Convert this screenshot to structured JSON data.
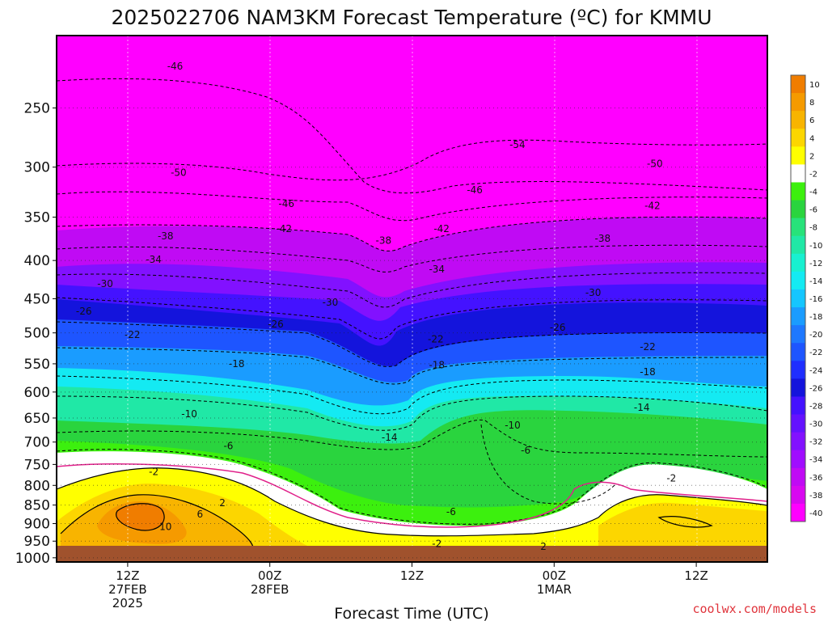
{
  "chart_data": {
    "type": "heatmap",
    "title": "2025022706 NAM3KM Forecast Temperature (ºC) for KMMU",
    "xlabel": "Forecast Time (UTC)",
    "ylabel": "",
    "x_ticks": [
      {
        "hours": 6,
        "lines": [
          "12Z",
          "27FEB",
          "2025"
        ]
      },
      {
        "hours": 18,
        "lines": [
          "00Z",
          "28FEB"
        ]
      },
      {
        "hours": 30,
        "lines": [
          "12Z"
        ]
      },
      {
        "hours": 42,
        "lines": [
          "00Z",
          "1MAR"
        ]
      },
      {
        "hours": 54,
        "lines": [
          "12Z"
        ]
      }
    ],
    "xlim_hours": [
      0,
      60
    ],
    "y_ticks": [
      250,
      300,
      350,
      400,
      450,
      500,
      550,
      600,
      650,
      700,
      750,
      800,
      850,
      900,
      950,
      1000
    ],
    "ylim_hpa": [
      1013,
      200
    ],
    "y_scale": "log-pressure",
    "ground_level_hpa": 1000,
    "colorbar": {
      "levels": [
        10,
        8,
        6,
        4,
        2,
        -2,
        -4,
        -6,
        -8,
        -10,
        -12,
        -14,
        -16,
        -18,
        -20,
        -22,
        -24,
        -26,
        -28,
        -30,
        -32,
        -34,
        -36,
        -38,
        -40
      ],
      "colors": [
        "#f07d00",
        "#f59a00",
        "#f8b400",
        "#fcd600",
        "#ffff00",
        "#ffffff",
        "#3cf00e",
        "#2ad43e",
        "#27e27a",
        "#20e8a6",
        "#18f0d0",
        "#14eaf2",
        "#15c6ff",
        "#1a9cff",
        "#1e78ff",
        "#1e55ff",
        "#1f2eff",
        "#1414dc",
        "#4412ff",
        "#6412ff",
        "#8211ff",
        "#a00dff",
        "#c00af4",
        "#d808f0",
        "#ff00ff"
      ]
    },
    "contour_labels": [
      {
        "text": "-46",
        "hours": 10,
        "hpa": 220
      },
      {
        "text": "-50",
        "hours": 10.3,
        "hpa": 305
      },
      {
        "text": "-46",
        "hours": 19.4,
        "hpa": 336
      },
      {
        "text": "-42",
        "hours": 19.2,
        "hpa": 363
      },
      {
        "text": "-38",
        "hours": 9.2,
        "hpa": 371
      },
      {
        "text": "-34",
        "hours": 8.2,
        "hpa": 399
      },
      {
        "text": "-30",
        "hours": 4.1,
        "hpa": 430
      },
      {
        "text": "-26",
        "hours": 2.3,
        "hpa": 468
      },
      {
        "text": "-22",
        "hours": 6.4,
        "hpa": 503
      },
      {
        "text": "-18",
        "hours": 15.2,
        "hpa": 550
      },
      {
        "text": "-10",
        "hours": 11.2,
        "hpa": 642
      },
      {
        "text": "-6",
        "hours": 14.5,
        "hpa": 708
      },
      {
        "text": "-2",
        "hours": 8.2,
        "hpa": 767
      },
      {
        "text": "2",
        "hours": 14,
        "hpa": 845
      },
      {
        "text": "6",
        "hours": 12.1,
        "hpa": 874
      },
      {
        "text": "10",
        "hours": 9.2,
        "hpa": 909
      },
      {
        "text": "-26",
        "hours": 18.5,
        "hpa": 487
      },
      {
        "text": "-30",
        "hours": 23.1,
        "hpa": 455
      },
      {
        "text": "-38",
        "hours": 27.6,
        "hpa": 376
      },
      {
        "text": "-42",
        "hours": 32.5,
        "hpa": 363
      },
      {
        "text": "-34",
        "hours": 32.1,
        "hpa": 411
      },
      {
        "text": "-22",
        "hours": 32,
        "hpa": 510
      },
      {
        "text": "-18",
        "hours": 32.1,
        "hpa": 552
      },
      {
        "text": "-14",
        "hours": 28.1,
        "hpa": 690
      },
      {
        "text": "-6",
        "hours": 33.3,
        "hpa": 868
      },
      {
        "text": "-2",
        "hours": 32.1,
        "hpa": 958
      },
      {
        "text": "-46",
        "hours": 35.3,
        "hpa": 322
      },
      {
        "text": "-54",
        "hours": 38.9,
        "hpa": 280
      },
      {
        "text": "-50",
        "hours": 50.5,
        "hpa": 297
      },
      {
        "text": "-42",
        "hours": 50.3,
        "hpa": 338
      },
      {
        "text": "-38",
        "hours": 46.1,
        "hpa": 374
      },
      {
        "text": "-30",
        "hours": 45.3,
        "hpa": 442
      },
      {
        "text": "-26",
        "hours": 42.3,
        "hpa": 492
      },
      {
        "text": "-22",
        "hours": 49.9,
        "hpa": 522
      },
      {
        "text": "-18",
        "hours": 49.9,
        "hpa": 564
      },
      {
        "text": "-14",
        "hours": 49.4,
        "hpa": 629
      },
      {
        "text": "-10",
        "hours": 38.5,
        "hpa": 665
      },
      {
        "text": "-6",
        "hours": 39.6,
        "hpa": 718
      },
      {
        "text": "-2",
        "hours": 51.9,
        "hpa": 783
      },
      {
        "text": "2",
        "hours": 41.1,
        "hpa": 966
      }
    ]
  },
  "credit": "coolwx.com/models"
}
